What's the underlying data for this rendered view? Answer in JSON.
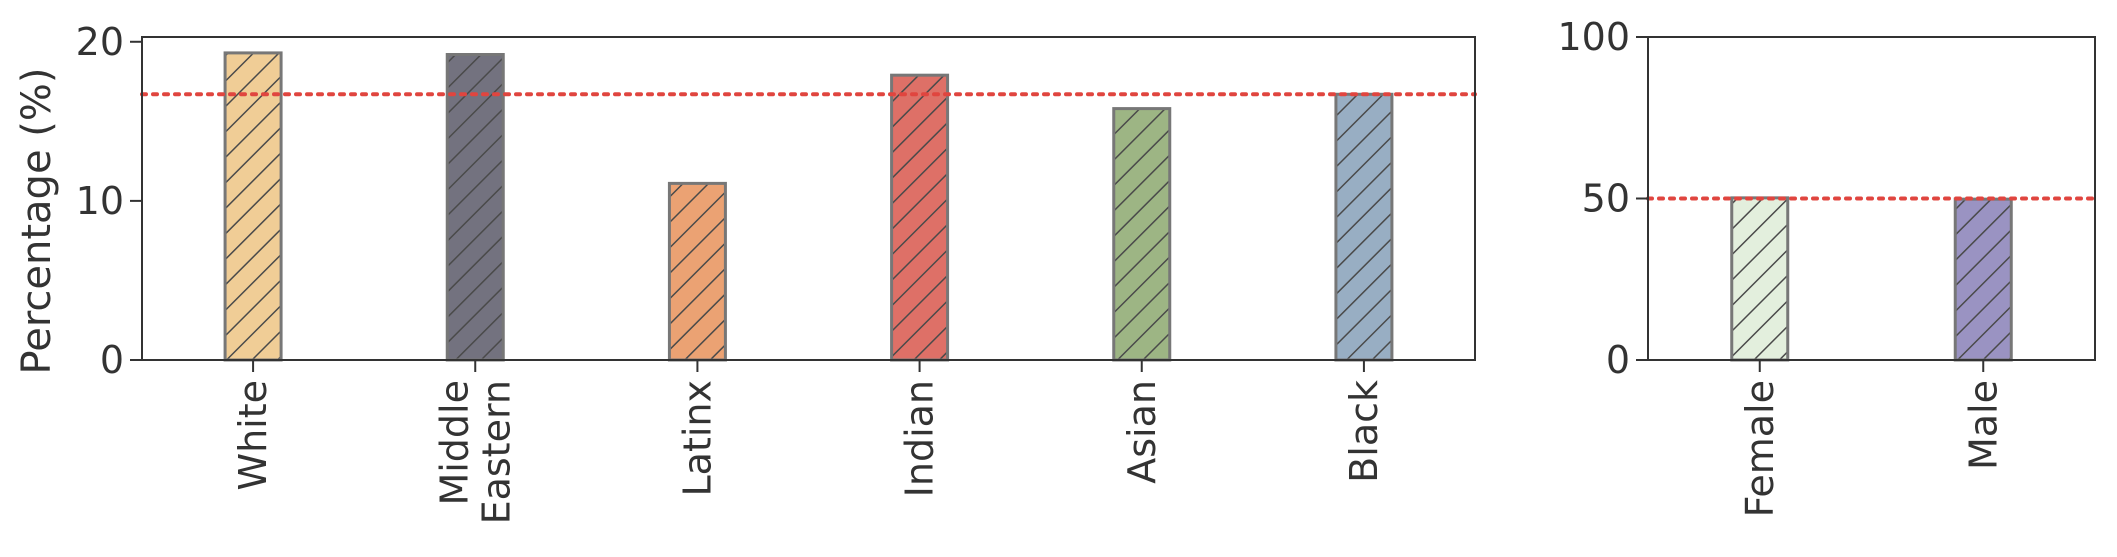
{
  "chart_data": [
    {
      "type": "bar",
      "categories": [
        "White",
        "Middle\nEastern",
        "Latinx",
        "Indian",
        "Asian",
        "Black"
      ],
      "values": [
        19.3,
        19.2,
        11.1,
        17.9,
        15.8,
        16.7
      ],
      "colors": [
        "#f0cd96",
        "#73727f",
        "#eba273",
        "#de7067",
        "#9db584",
        "#98aec3"
      ],
      "hatch": "diagonal",
      "reference_line": {
        "value": 16.7,
        "style": "dotted",
        "color": "#e0453f"
      },
      "title": "",
      "xlabel": "",
      "ylabel": "Percentage (%)",
      "ylim": [
        0,
        20.3
      ],
      "yticks": [
        0,
        10,
        20
      ],
      "grid": false
    },
    {
      "type": "bar",
      "categories": [
        "Female",
        "Male"
      ],
      "values": [
        50.2,
        49.8
      ],
      "colors": [
        "#e3efdd",
        "#9a93c2"
      ],
      "hatch": "diagonal",
      "reference_line": {
        "value": 50,
        "style": "dotted",
        "color": "#e0453f"
      },
      "title": "",
      "xlabel": "",
      "ylabel": "",
      "ylim": [
        0,
        100
      ],
      "yticks": [
        0,
        50,
        100
      ],
      "grid": false
    }
  ]
}
